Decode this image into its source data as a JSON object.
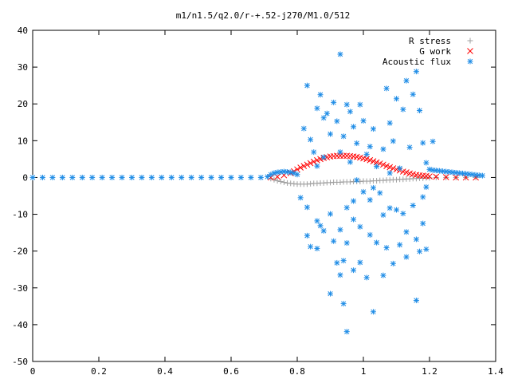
{
  "chart_data": {
    "type": "scatter",
    "title": "m1/n1.5/q2.0/r-+.52-j270/M1.0/512",
    "xlabel": "",
    "ylabel": "",
    "xlim": [
      0,
      1.4
    ],
    "ylim": [
      -50,
      40
    ],
    "x_ticks": [
      "0",
      "0.2",
      "0.4",
      "0.6",
      "0.8",
      "1",
      "1.2",
      "1.4"
    ],
    "y_ticks": [
      "40",
      "30",
      "20",
      "10",
      "0",
      "-10",
      "-20",
      "-30",
      "-40",
      "-50"
    ],
    "x_tick_values": [
      0,
      0.2,
      0.4,
      0.6,
      0.8,
      1.0,
      1.2,
      1.4
    ],
    "y_tick_values": [
      40,
      30,
      20,
      10,
      0,
      -10,
      -20,
      -30,
      -40,
      -50
    ],
    "grid": false,
    "legend_position": "top-right",
    "series": [
      {
        "name": "R stress",
        "marker": "plus",
        "color": "#a0a0a0",
        "points": [
          [
            0.72,
            -0.3
          ],
          [
            0.73,
            -0.6
          ],
          [
            0.74,
            -0.9
          ],
          [
            0.75,
            -1.1
          ],
          [
            0.76,
            -1.3
          ],
          [
            0.77,
            -1.5
          ],
          [
            0.78,
            -1.6
          ],
          [
            0.79,
            -1.7
          ],
          [
            0.8,
            -1.8
          ],
          [
            0.81,
            -1.8
          ],
          [
            0.82,
            -1.8
          ],
          [
            0.83,
            -1.8
          ],
          [
            0.84,
            -1.7
          ],
          [
            0.85,
            -1.6
          ],
          [
            0.86,
            -1.6
          ],
          [
            0.87,
            -1.5
          ],
          [
            0.88,
            -1.5
          ],
          [
            0.89,
            -1.4
          ],
          [
            0.9,
            -1.4
          ],
          [
            0.91,
            -1.3
          ],
          [
            0.92,
            -1.3
          ],
          [
            0.93,
            -1.3
          ],
          [
            0.94,
            -1.2
          ],
          [
            0.95,
            -1.2
          ],
          [
            0.96,
            -1.2
          ],
          [
            0.97,
            -1.1
          ],
          [
            0.98,
            -1.1
          ],
          [
            0.99,
            -1.1
          ],
          [
            1.0,
            -1.0
          ],
          [
            1.01,
            -1.0
          ],
          [
            1.02,
            -1.0
          ],
          [
            1.03,
            -0.9
          ],
          [
            1.04,
            -0.9
          ],
          [
            1.05,
            -0.8
          ],
          [
            1.06,
            -0.8
          ],
          [
            1.07,
            -0.7
          ],
          [
            1.08,
            -0.7
          ],
          [
            1.09,
            -0.6
          ],
          [
            1.1,
            -0.6
          ],
          [
            1.11,
            -0.5
          ],
          [
            1.12,
            -0.5
          ],
          [
            1.13,
            -0.4
          ],
          [
            1.14,
            -0.4
          ],
          [
            1.15,
            -0.3
          ],
          [
            1.16,
            -0.3
          ],
          [
            1.17,
            -0.2
          ],
          [
            1.18,
            -0.2
          ],
          [
            1.19,
            -0.1
          ],
          [
            1.2,
            -0.1
          ],
          [
            1.22,
            0.0
          ],
          [
            1.25,
            0.0
          ],
          [
            1.28,
            0.0
          ],
          [
            1.31,
            0.0
          ],
          [
            1.34,
            0.0
          ]
        ]
      },
      {
        "name": "G work",
        "marker": "cross",
        "color": "#ff0000",
        "points": [
          [
            0.72,
            0.0
          ],
          [
            0.74,
            0.2
          ],
          [
            0.76,
            0.6
          ],
          [
            0.78,
            1.2
          ],
          [
            0.79,
            1.7
          ],
          [
            0.8,
            2.2
          ],
          [
            0.81,
            2.7
          ],
          [
            0.82,
            3.1
          ],
          [
            0.83,
            3.5
          ],
          [
            0.84,
            3.9
          ],
          [
            0.85,
            4.3
          ],
          [
            0.86,
            4.7
          ],
          [
            0.87,
            5.0
          ],
          [
            0.88,
            5.3
          ],
          [
            0.89,
            5.5
          ],
          [
            0.9,
            5.7
          ],
          [
            0.91,
            5.8
          ],
          [
            0.92,
            5.9
          ],
          [
            0.93,
            5.9
          ],
          [
            0.94,
            5.9
          ],
          [
            0.95,
            5.9
          ],
          [
            0.96,
            5.8
          ],
          [
            0.97,
            5.7
          ],
          [
            0.98,
            5.6
          ],
          [
            0.99,
            5.4
          ],
          [
            1.0,
            5.2
          ],
          [
            1.01,
            5.0
          ],
          [
            1.02,
            4.7
          ],
          [
            1.03,
            4.4
          ],
          [
            1.04,
            4.1
          ],
          [
            1.05,
            3.8
          ],
          [
            1.06,
            3.5
          ],
          [
            1.07,
            3.1
          ],
          [
            1.08,
            2.8
          ],
          [
            1.09,
            2.5
          ],
          [
            1.1,
            2.2
          ],
          [
            1.11,
            1.9
          ],
          [
            1.12,
            1.6
          ],
          [
            1.13,
            1.4
          ],
          [
            1.14,
            1.1
          ],
          [
            1.15,
            0.9
          ],
          [
            1.16,
            0.7
          ],
          [
            1.17,
            0.6
          ],
          [
            1.18,
            0.5
          ],
          [
            1.19,
            0.4
          ],
          [
            1.2,
            0.3
          ],
          [
            1.22,
            0.2
          ],
          [
            1.25,
            0.1
          ],
          [
            1.28,
            0.0
          ],
          [
            1.31,
            0.0
          ],
          [
            1.34,
            0.0
          ]
        ]
      },
      {
        "name": "Acoustic flux",
        "marker": "star",
        "color": "#1e8ce6",
        "points": [
          [
            0.0,
            0.0
          ],
          [
            0.03,
            0.0
          ],
          [
            0.06,
            0.0
          ],
          [
            0.09,
            0.0
          ],
          [
            0.12,
            0.0
          ],
          [
            0.15,
            0.0
          ],
          [
            0.18,
            0.0
          ],
          [
            0.21,
            0.0
          ],
          [
            0.24,
            0.0
          ],
          [
            0.27,
            0.0
          ],
          [
            0.3,
            0.0
          ],
          [
            0.33,
            0.0
          ],
          [
            0.36,
            0.0
          ],
          [
            0.39,
            0.0
          ],
          [
            0.42,
            0.0
          ],
          [
            0.45,
            0.0
          ],
          [
            0.48,
            0.0
          ],
          [
            0.51,
            0.0
          ],
          [
            0.54,
            0.0
          ],
          [
            0.57,
            0.0
          ],
          [
            0.6,
            0.0
          ],
          [
            0.63,
            0.0
          ],
          [
            0.66,
            0.0
          ],
          [
            0.69,
            0.0
          ],
          [
            0.71,
            0.2
          ],
          [
            0.72,
            0.8
          ],
          [
            0.73,
            1.2
          ],
          [
            0.74,
            1.4
          ],
          [
            0.75,
            1.5
          ],
          [
            0.76,
            1.6
          ],
          [
            0.77,
            1.5
          ],
          [
            0.78,
            1.4
          ],
          [
            0.79,
            1.2
          ],
          [
            0.8,
            0.8
          ],
          [
            0.83,
            25.0
          ],
          [
            0.93,
            33.5
          ],
          [
            0.87,
            22.5
          ],
          [
            0.95,
            19.8
          ],
          [
            1.07,
            24.2
          ],
          [
            1.13,
            26.3
          ],
          [
            1.16,
            28.8
          ],
          [
            1.15,
            22.6
          ],
          [
            0.82,
            13.3
          ],
          [
            0.86,
            18.8
          ],
          [
            0.89,
            17.4
          ],
          [
            0.91,
            20.4
          ],
          [
            0.96,
            17.9
          ],
          [
            0.99,
            19.8
          ],
          [
            1.1,
            21.4
          ],
          [
            1.17,
            18.2
          ],
          [
            1.21,
            9.8
          ],
          [
            1.12,
            18.5
          ],
          [
            0.84,
            10.3
          ],
          [
            0.88,
            16.2
          ],
          [
            0.92,
            15.3
          ],
          [
            0.97,
            13.8
          ],
          [
            1.0,
            15.4
          ],
          [
            1.03,
            13.2
          ],
          [
            1.08,
            14.8
          ],
          [
            1.18,
            9.4
          ],
          [
            0.85,
            6.9
          ],
          [
            0.9,
            11.8
          ],
          [
            0.94,
            11.2
          ],
          [
            0.98,
            9.3
          ],
          [
            1.02,
            8.4
          ],
          [
            1.06,
            7.7
          ],
          [
            1.09,
            9.9
          ],
          [
            1.14,
            8.2
          ],
          [
            0.86,
            3.1
          ],
          [
            0.88,
            5.5
          ],
          [
            0.93,
            6.9
          ],
          [
            0.96,
            4.2
          ],
          [
            1.01,
            6.3
          ],
          [
            1.04,
            3.0
          ],
          [
            1.11,
            2.5
          ],
          [
            1.19,
            4.0
          ],
          [
            1.0,
            -3.9
          ],
          [
            1.02,
            -6.1
          ],
          [
            0.97,
            -6.4
          ],
          [
            0.95,
            -8.2
          ],
          [
            0.9,
            -9.9
          ],
          [
            0.86,
            -11.8
          ],
          [
            0.83,
            -8.1
          ],
          [
            0.81,
            -5.5
          ],
          [
            1.05,
            -4.2
          ],
          [
            1.08,
            -8.3
          ],
          [
            1.12,
            -9.8
          ],
          [
            1.15,
            -7.6
          ],
          [
            1.18,
            -5.3
          ],
          [
            1.19,
            -2.6
          ],
          [
            0.83,
            -15.8
          ],
          [
            0.84,
            -18.8
          ],
          [
            0.86,
            -19.3
          ],
          [
            0.88,
            -14.5
          ],
          [
            0.91,
            -17.3
          ],
          [
            0.93,
            -14.2
          ],
          [
            0.95,
            -17.8
          ],
          [
            0.99,
            -13.4
          ],
          [
            1.02,
            -15.6
          ],
          [
            1.04,
            -17.7
          ],
          [
            1.07,
            -19.1
          ],
          [
            1.11,
            -18.3
          ],
          [
            1.13,
            -14.8
          ],
          [
            1.16,
            -16.8
          ],
          [
            1.17,
            -20.1
          ],
          [
            1.18,
            -12.5
          ],
          [
            0.92,
            -23.2
          ],
          [
            0.93,
            -26.5
          ],
          [
            0.94,
            -22.6
          ],
          [
            0.97,
            -25.2
          ],
          [
            0.99,
            -23.1
          ],
          [
            1.01,
            -27.2
          ],
          [
            1.06,
            -26.6
          ],
          [
            1.09,
            -23.4
          ],
          [
            1.13,
            -21.6
          ],
          [
            1.19,
            -19.5
          ],
          [
            0.9,
            -31.6
          ],
          [
            0.94,
            -34.3
          ],
          [
            1.03,
            -36.5
          ],
          [
            1.16,
            -33.4
          ],
          [
            0.95,
            -41.9
          ],
          [
            1.1,
            -8.8
          ],
          [
            0.87,
            -13.1
          ],
          [
            0.97,
            -11.4
          ],
          [
            1.03,
            -2.8
          ],
          [
            1.06,
            -10.2
          ],
          [
            0.98,
            -0.7
          ],
          [
            1.08,
            1.2
          ],
          [
            1.2,
            2.2
          ],
          [
            1.21,
            2.0
          ],
          [
            1.22,
            1.9
          ],
          [
            1.23,
            1.8
          ],
          [
            1.24,
            1.7
          ],
          [
            1.25,
            1.6
          ],
          [
            1.26,
            1.5
          ],
          [
            1.27,
            1.4
          ],
          [
            1.28,
            1.3
          ],
          [
            1.29,
            1.2
          ],
          [
            1.3,
            1.1
          ],
          [
            1.31,
            1.0
          ],
          [
            1.32,
            0.9
          ],
          [
            1.33,
            0.8
          ],
          [
            1.34,
            0.7
          ],
          [
            1.35,
            0.6
          ],
          [
            1.36,
            0.5
          ]
        ]
      }
    ]
  }
}
